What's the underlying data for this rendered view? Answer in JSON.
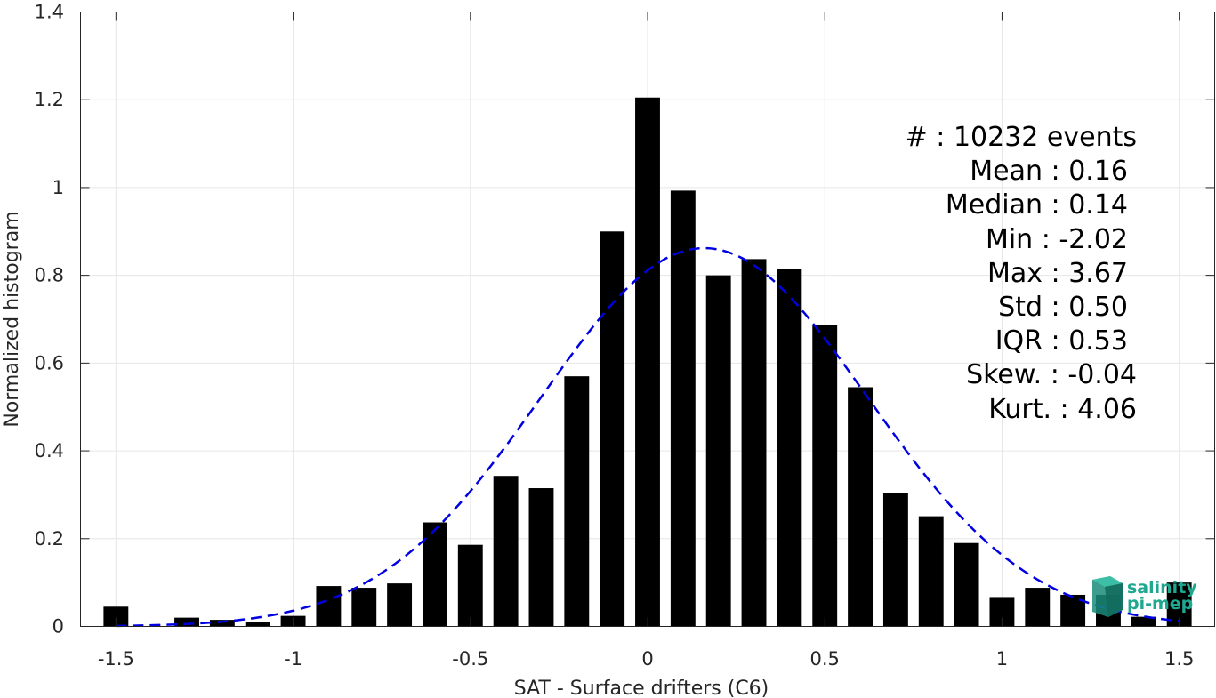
{
  "chart_data": {
    "type": "bar",
    "xlabel": "SAT - Surface drifters (C6)",
    "ylabel": "Normalized histogram",
    "xlim": [
      -1.6,
      1.6
    ],
    "ylim": [
      0,
      1.4
    ],
    "grid": true,
    "x_ticks": [
      -1.5,
      -1,
      -0.5,
      0,
      0.5,
      1,
      1.5
    ],
    "x_tick_labels": [
      "-1.5",
      "-1",
      "-0.5",
      "0",
      "0.5",
      "1",
      "1.5"
    ],
    "y_ticks": [
      0,
      0.2,
      0.4,
      0.6,
      0.8,
      1,
      1.2,
      1.4
    ],
    "y_tick_labels": [
      "0",
      "0.2",
      "0.4",
      "0.6",
      "0.8",
      "1",
      "1.2",
      "1.4"
    ],
    "bar_width": 0.07,
    "bars": {
      "color": "#000000",
      "x": [
        -1.5,
        -1.4,
        -1.3,
        -1.2,
        -1.1,
        -1.0,
        -0.9,
        -0.8,
        -0.7,
        -0.6,
        -0.5,
        -0.4,
        -0.3,
        -0.2,
        -0.1,
        0.0,
        0.1,
        0.2,
        0.3,
        0.4,
        0.5,
        0.6,
        0.7,
        0.8,
        0.9,
        1.0,
        1.1,
        1.2,
        1.3,
        1.4,
        1.5
      ],
      "values": [
        0.045,
        0.0,
        0.02,
        0.015,
        0.01,
        0.024,
        0.092,
        0.088,
        0.098,
        0.237,
        0.186,
        0.343,
        0.315,
        0.57,
        0.9,
        1.205,
        0.993,
        0.8,
        0.837,
        0.815,
        0.686,
        0.545,
        0.304,
        0.251,
        0.19,
        0.067,
        0.088,
        0.072,
        0.072,
        0.022,
        0.1
      ]
    },
    "fit_curve": {
      "type": "gaussian",
      "mean": 0.16,
      "std": 0.46,
      "peak": 0.862,
      "color": "#0000e0",
      "style": "dashed"
    },
    "annotations": [
      "#  : 10232 events",
      "Mean : 0.16",
      "Median : 0.14",
      "Min : -2.02",
      "Max : 3.67",
      "Std : 0.50",
      "IQR : 0.53",
      "Skew. : -0.04",
      "Kurt. : 4.06"
    ]
  },
  "logo": {
    "line1": "salinity",
    "line2": "pi-mep",
    "color": "#1fa88f"
  }
}
